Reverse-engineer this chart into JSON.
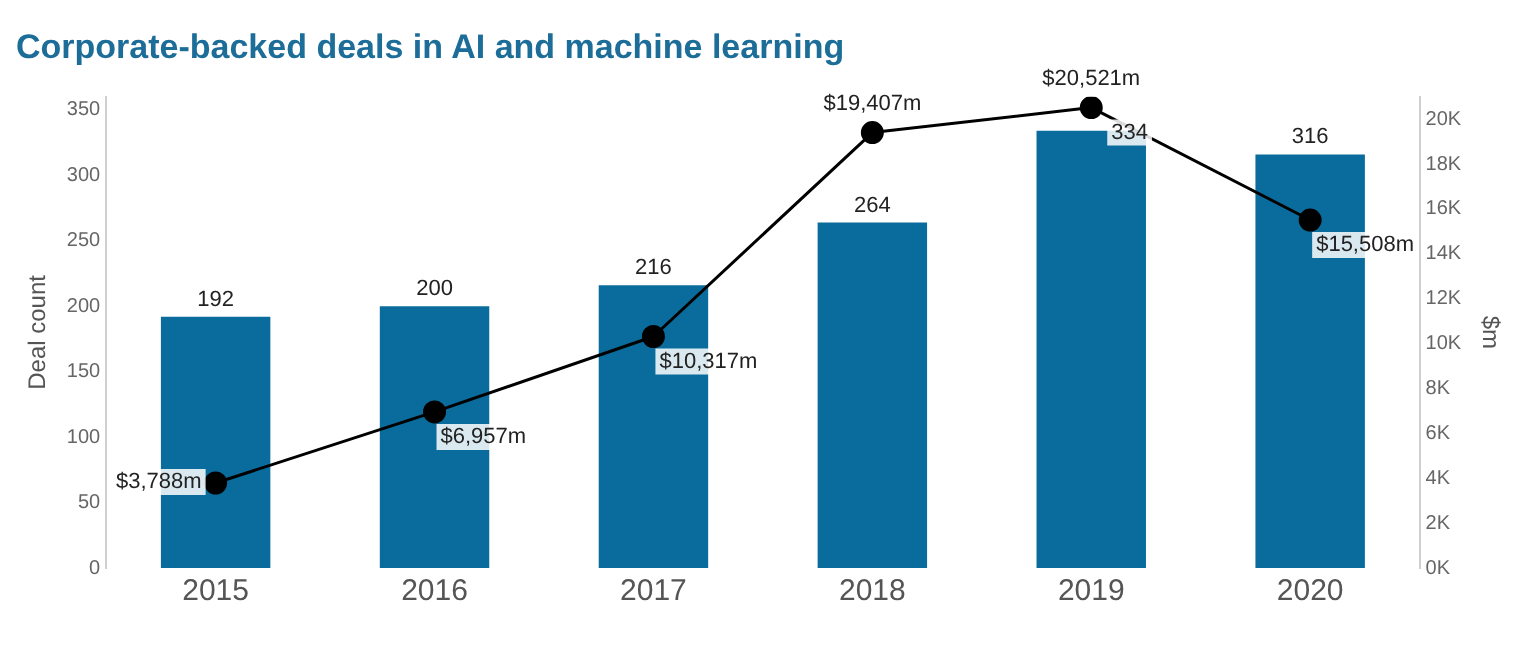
{
  "chart_data": {
    "type": "bar",
    "title": "Corporate-backed deals in AI and machine learning",
    "ylabel": "Deal count",
    "y2label": "$m",
    "categories": [
      "2015",
      "2016",
      "2017",
      "2018",
      "2019",
      "2020"
    ],
    "series": [
      {
        "color": "#0a6c9c",
        "values": [
          192,
          200,
          216,
          264,
          334,
          316
        ],
        "value_labels": [
          "192",
          "200",
          "216",
          "264",
          "334",
          "316"
        ]
      },
      {
        "type": "line",
        "axis": "y2",
        "color": "#000000",
        "marker": "circle",
        "values": [
          3788,
          6957,
          10317,
          19407,
          20521,
          15508
        ],
        "value_labels": [
          "$3,788m",
          "$6,957m",
          "$10,317m",
          "$19,407m",
          "$20,521m",
          "$15,508m"
        ]
      }
    ],
    "ylim": [
      0,
      360
    ],
    "yticks": [
      0,
      50,
      100,
      150,
      200,
      250,
      300,
      350
    ],
    "y2lim": [
      0,
      21000
    ],
    "y2ticks": [
      {
        "value": 0,
        "label": "0K"
      },
      {
        "value": 2000,
        "label": "2K"
      },
      {
        "value": 4000,
        "label": "4K"
      },
      {
        "value": 6000,
        "label": "6K"
      },
      {
        "value": 8000,
        "label": "8K"
      },
      {
        "value": 10000,
        "label": "10K"
      },
      {
        "value": 12000,
        "label": "12K"
      },
      {
        "value": 14000,
        "label": "14K"
      },
      {
        "value": 16000,
        "label": "16K"
      },
      {
        "value": 18000,
        "label": "18K"
      },
      {
        "value": 20000,
        "label": "20K"
      }
    ],
    "grid": false,
    "legend": false
  }
}
